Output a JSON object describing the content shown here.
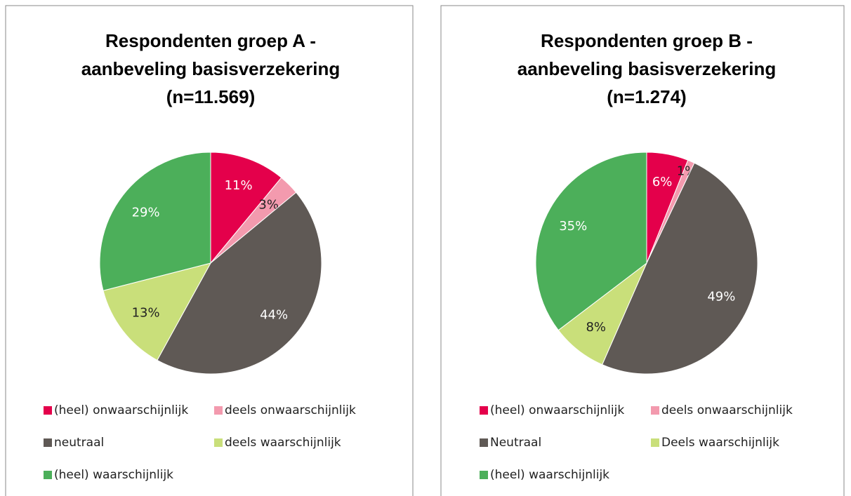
{
  "chart_data": [
    {
      "type": "pie",
      "title": [
        "Respondenten groep A  -",
        "aanbeveling basisverzekering",
        "(n=11.569)"
      ],
      "categories": [
        "(heel) onwaarschijnlijk",
        "deels onwaarschijnlijk",
        "neutraal",
        "deels waarschijnlijk",
        "(heel) waarschijnlijk"
      ],
      "values": [
        11,
        3,
        44,
        13,
        29
      ],
      "value_labels": [
        "11%",
        "3%",
        "44%",
        "13%",
        "29%"
      ],
      "colors": [
        "#e4004b",
        "#f39aae",
        "#5f5955",
        "#c9df7a",
        "#4caf5a"
      ]
    },
    {
      "type": "pie",
      "title": [
        "Respondenten groep B -",
        "aanbeveling basisverzekering",
        "(n=1.274)"
      ],
      "categories": [
        "(heel) onwaarschijnlijk",
        "deels onwaarschijnlijk",
        "Neutraal",
        "Deels waarschijnlijk",
        "(heel) waarschijnlijk"
      ],
      "values": [
        6,
        1,
        49,
        8,
        35
      ],
      "value_labels": [
        "6%",
        "1%",
        "49%",
        "8%",
        "35%"
      ],
      "colors": [
        "#e4004b",
        "#f39aae",
        "#5f5955",
        "#c9df7a",
        "#4caf5a"
      ]
    }
  ]
}
